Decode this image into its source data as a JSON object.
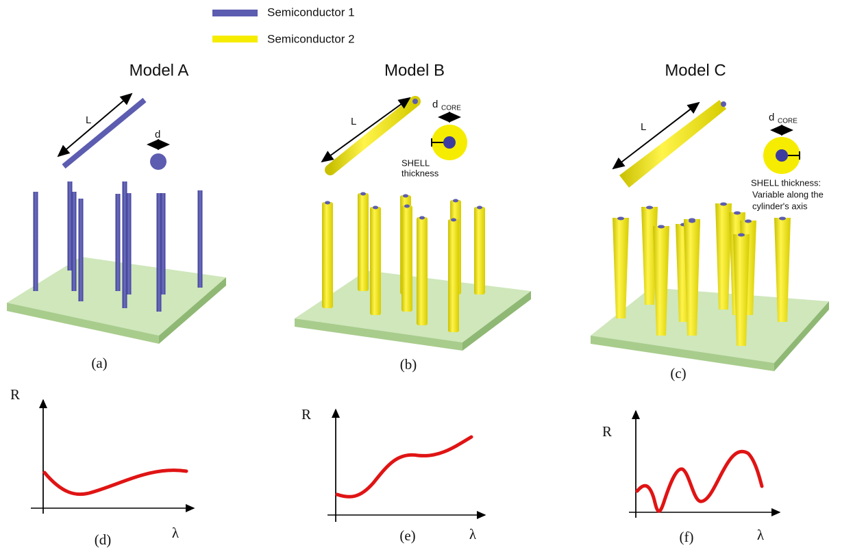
{
  "legend": [
    {
      "label": "Semiconductor 1"
    },
    {
      "label": "Semiconductor 2"
    }
  ],
  "models": [
    {
      "title": "Model A",
      "length_label": "L",
      "diameter_label": "d",
      "caption": "(a)"
    },
    {
      "title": "Model B",
      "length_label": "L",
      "diameter_label": "d",
      "diameter_subscript": "CORE",
      "shell_label": [
        "SHELL",
        "thickness"
      ],
      "caption": "(b)"
    },
    {
      "title": "Model C",
      "length_label": "L",
      "diameter_label": "d",
      "diameter_subscript": "CORE",
      "shell_label": [
        "SHELL thickness:",
        "Variable along the",
        "cylinder's axis"
      ],
      "caption": "(c)"
    }
  ],
  "graphs": [
    {
      "y_label": "R",
      "x_label": "λ",
      "caption": "(d)"
    },
    {
      "y_label": "R",
      "x_label": "λ",
      "caption": "(e)"
    },
    {
      "y_label": "R",
      "x_label": "λ",
      "caption": "(f)"
    }
  ]
}
